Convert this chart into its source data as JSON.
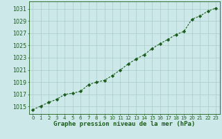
{
  "x": [
    0,
    1,
    2,
    3,
    4,
    5,
    6,
    7,
    8,
    9,
    10,
    11,
    12,
    13,
    14,
    15,
    16,
    17,
    18,
    19,
    20,
    21,
    22,
    23
  ],
  "y": [
    1014.5,
    1015.1,
    1015.7,
    1016.2,
    1017.0,
    1017.2,
    1017.5,
    1018.6,
    1019.0,
    1019.3,
    1020.1,
    1021.0,
    1022.0,
    1022.8,
    1023.5,
    1024.5,
    1025.3,
    1026.0,
    1026.8,
    1027.3,
    1029.3,
    1029.8,
    1030.6,
    1031.1
  ],
  "line_color": "#1a5c1a",
  "marker": "D",
  "marker_size": 2.2,
  "bg_color": "#cce8e8",
  "grid_color": "#aacccc",
  "ylabel_ticks": [
    1015,
    1017,
    1019,
    1021,
    1023,
    1025,
    1027,
    1029,
    1031
  ],
  "xlim": [
    -0.5,
    23.5
  ],
  "ylim": [
    1013.8,
    1032.2
  ],
  "xlabel": "Graphe pression niveau de la mer (hPa)",
  "xlabel_fontsize": 6.5,
  "tick_fontsize": 5.8,
  "xtick_fontsize": 5.0
}
